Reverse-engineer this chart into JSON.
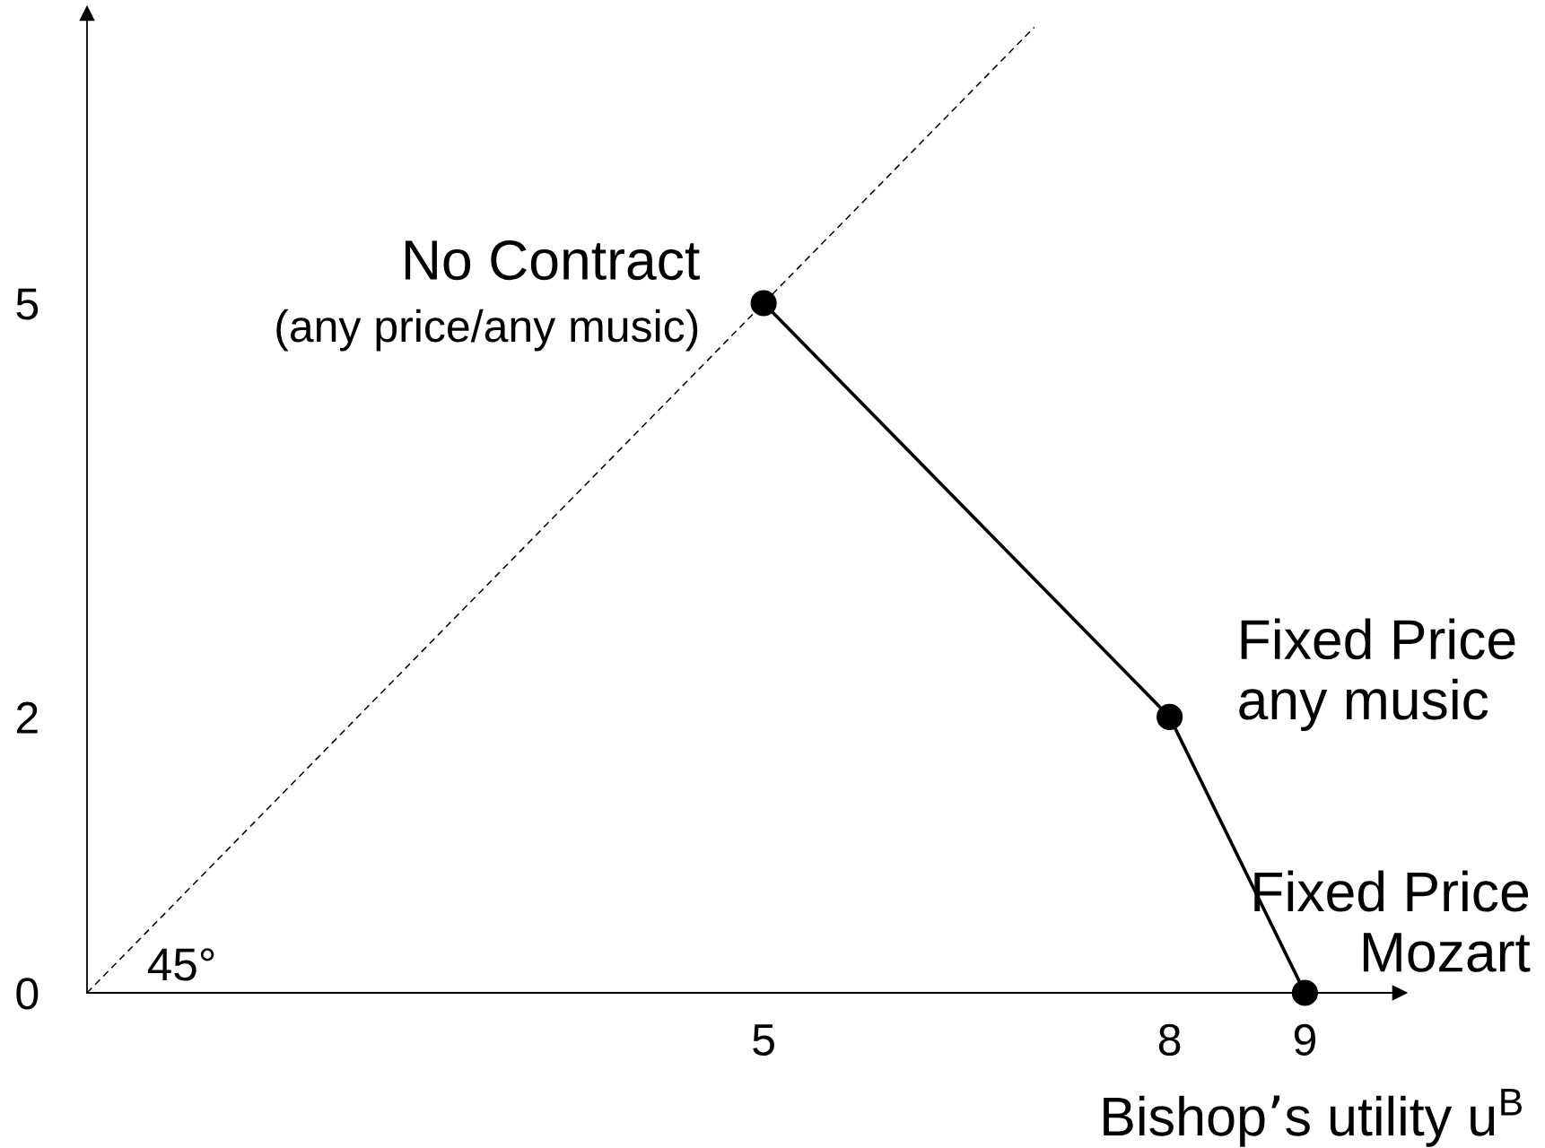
{
  "chart_data": {
    "type": "line",
    "xlabel": "Bishop’s utility u$^{B}$",
    "xlim": [
      0,
      9.7
    ],
    "ylim": [
      0,
      7.1
    ],
    "xticks": [
      5,
      8,
      9
    ],
    "yticks": [
      0,
      2,
      5
    ],
    "series": [
      {
        "x": [
          0,
          7
        ],
        "values": [
          0,
          7
        ],
        "color": "#000000",
        "line_style": "dashed",
        "marker": "none"
      },
      {
        "x": [
          5,
          8,
          9
        ],
        "values": [
          5,
          2,
          0
        ],
        "color": "#000000",
        "line_style": "solid",
        "marker": "circle"
      }
    ],
    "annotations": [
      {
        "text": "No Contract",
        "x": 5,
        "y": 5
      },
      {
        "text": "(any price/any music)",
        "x": 5,
        "y": 5
      },
      {
        "text": "Fixed Price\nany music",
        "x": 8,
        "y": 2
      },
      {
        "text": "Fixed Price\nMozart",
        "x": 9,
        "y": 0
      },
      {
        "text": "45°",
        "x": 0,
        "y": 0
      }
    ]
  }
}
